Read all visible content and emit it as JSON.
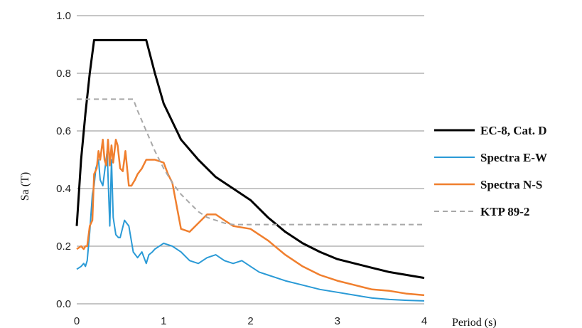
{
  "chart_data": {
    "type": "line",
    "title": "",
    "xlabel": "Period (s)",
    "ylabel": "Sa (T)",
    "xlim": [
      0,
      4
    ],
    "ylim": [
      0,
      1.0
    ],
    "xticks": [
      "0",
      "1",
      "2",
      "3",
      "4"
    ],
    "yticks": [
      "0.0",
      "0.2",
      "0.4",
      "0.6",
      "0.8",
      "1.0"
    ],
    "grid": "horizontal",
    "legend_position": "right",
    "series": [
      {
        "name": "EC-8, Cat. D",
        "color": "#000000",
        "style": "solid",
        "x": [
          0,
          0.05,
          0.1,
          0.15,
          0.2,
          0.4,
          0.6,
          0.8,
          0.9,
          1.0,
          1.2,
          1.4,
          1.6,
          1.8,
          2.0,
          2.2,
          2.4,
          2.6,
          2.8,
          3.0,
          3.2,
          3.4,
          3.6,
          3.8,
          4.0
        ],
        "y": [
          0.27,
          0.5,
          0.66,
          0.8,
          0.915,
          0.915,
          0.915,
          0.915,
          0.8,
          0.695,
          0.57,
          0.5,
          0.44,
          0.4,
          0.36,
          0.3,
          0.25,
          0.21,
          0.18,
          0.155,
          0.14,
          0.125,
          0.11,
          0.1,
          0.09
        ]
      },
      {
        "name": "Spectra E-W",
        "color": "#2a9ad6",
        "style": "solid",
        "x": [
          0,
          0.05,
          0.08,
          0.1,
          0.12,
          0.15,
          0.18,
          0.2,
          0.22,
          0.25,
          0.27,
          0.3,
          0.33,
          0.35,
          0.38,
          0.4,
          0.42,
          0.45,
          0.48,
          0.5,
          0.55,
          0.6,
          0.65,
          0.7,
          0.75,
          0.8,
          0.83,
          0.87,
          0.9,
          1.0,
          1.1,
          1.2,
          1.3,
          1.4,
          1.5,
          1.6,
          1.7,
          1.8,
          1.9,
          2.0,
          2.1,
          2.2,
          2.4,
          2.6,
          2.8,
          3.0,
          3.2,
          3.4,
          3.6,
          3.8,
          4.0
        ],
        "y": [
          0.12,
          0.13,
          0.14,
          0.13,
          0.15,
          0.25,
          0.38,
          0.41,
          0.47,
          0.5,
          0.43,
          0.41,
          0.48,
          0.53,
          0.27,
          0.5,
          0.3,
          0.24,
          0.23,
          0.23,
          0.29,
          0.27,
          0.18,
          0.16,
          0.18,
          0.14,
          0.17,
          0.18,
          0.19,
          0.21,
          0.2,
          0.18,
          0.15,
          0.14,
          0.16,
          0.17,
          0.15,
          0.14,
          0.15,
          0.13,
          0.11,
          0.1,
          0.08,
          0.065,
          0.05,
          0.04,
          0.03,
          0.02,
          0.015,
          0.012,
          0.01
        ]
      },
      {
        "name": "Spectra N-S",
        "color": "#f07f2e",
        "style": "solid",
        "x": [
          0,
          0.05,
          0.08,
          0.1,
          0.12,
          0.15,
          0.18,
          0.2,
          0.23,
          0.25,
          0.27,
          0.3,
          0.32,
          0.34,
          0.36,
          0.38,
          0.4,
          0.42,
          0.45,
          0.47,
          0.5,
          0.53,
          0.56,
          0.6,
          0.63,
          0.67,
          0.7,
          0.75,
          0.8,
          0.9,
          1.0,
          1.05,
          1.1,
          1.2,
          1.3,
          1.4,
          1.5,
          1.6,
          1.7,
          1.8,
          1.9,
          2.0,
          2.2,
          2.4,
          2.6,
          2.8,
          3.0,
          3.2,
          3.4,
          3.6,
          3.8,
          4.0
        ],
        "y": [
          0.19,
          0.2,
          0.19,
          0.2,
          0.2,
          0.27,
          0.29,
          0.45,
          0.47,
          0.53,
          0.5,
          0.57,
          0.5,
          0.48,
          0.57,
          0.48,
          0.55,
          0.49,
          0.57,
          0.55,
          0.47,
          0.46,
          0.53,
          0.41,
          0.41,
          0.43,
          0.45,
          0.47,
          0.5,
          0.5,
          0.49,
          0.45,
          0.42,
          0.26,
          0.25,
          0.28,
          0.31,
          0.31,
          0.29,
          0.27,
          0.265,
          0.26,
          0.22,
          0.17,
          0.13,
          0.1,
          0.08,
          0.065,
          0.05,
          0.045,
          0.035,
          0.03
        ]
      },
      {
        "name": "KTP 89-2",
        "color": "#a8a8a8",
        "style": "dashed",
        "x": [
          0,
          0.1,
          0.2,
          0.4,
          0.6,
          0.65,
          0.7,
          0.8,
          0.9,
          1.0,
          1.1,
          1.2,
          1.3,
          1.4,
          1.5,
          1.6,
          1.7,
          1.8,
          2.0,
          2.5,
          3.0,
          3.5,
          4.0
        ],
        "y": [
          0.71,
          0.71,
          0.71,
          0.71,
          0.71,
          0.71,
          0.67,
          0.6,
          0.53,
          0.47,
          0.42,
          0.38,
          0.35,
          0.32,
          0.3,
          0.29,
          0.28,
          0.275,
          0.275,
          0.275,
          0.275,
          0.275,
          0.275
        ]
      }
    ]
  }
}
